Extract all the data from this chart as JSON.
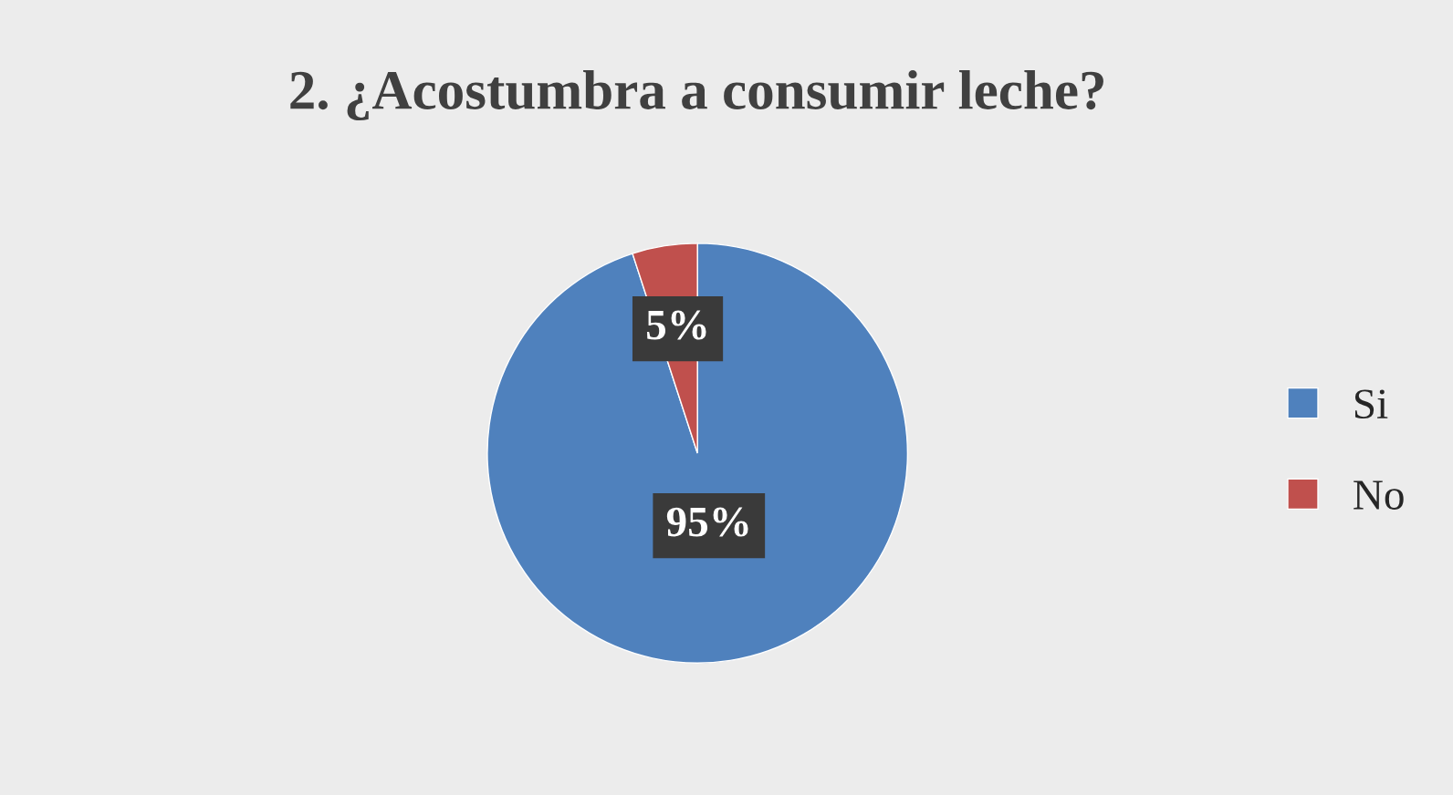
{
  "chart_data": {
    "type": "pie",
    "title": "2. ¿Acostumbra a consumir leche?",
    "categories": [
      "Si",
      "No"
    ],
    "values": [
      95,
      5
    ],
    "colors": [
      "#4f81bd",
      "#c0504d"
    ],
    "value_labels": [
      "95%",
      "5%"
    ],
    "legend": "right"
  }
}
